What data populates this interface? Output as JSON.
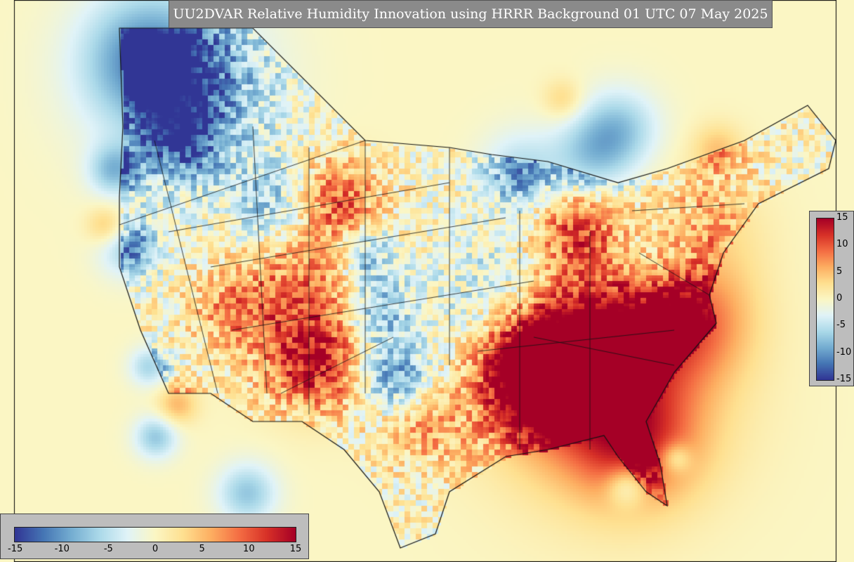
{
  "title": "UU2DVAR Relative Humidity Innovation using HRRR Background 01 UTC 07 May 2025",
  "colorscale": {
    "name": "RdYlBu_r",
    "min": -15,
    "max": 15,
    "stops": [
      "#313695",
      "#4575b4",
      "#74add1",
      "#abd9e9",
      "#e0f3f8",
      "#fbf6c4",
      "#fee090",
      "#fdae61",
      "#f46d43",
      "#d73027",
      "#a50026"
    ]
  },
  "colorbar_vertical": {
    "ticks": [
      "15",
      "10",
      "5",
      "0",
      "-5",
      "-10",
      "-15"
    ]
  },
  "colorbar_horizontal": {
    "ticks": [
      "-15",
      "-10",
      "-5",
      "0",
      "5",
      "10",
      "15"
    ]
  },
  "map": {
    "projection": "lambert-conformal",
    "region": "CONUS",
    "background_value": 0,
    "notable_features": [
      {
        "area": "Southeast US (GA, SC, NC, AL, FL)",
        "value": 12
      },
      {
        "area": "Virginia coast",
        "value": 14
      },
      {
        "area": "Pacific Northwest interior",
        "value": -12
      },
      {
        "area": "Colorado Rockies",
        "value": 10
      },
      {
        "area": "Oklahoma / Texas panhandle",
        "value": -11
      },
      {
        "area": "Upper Great Lakes",
        "value": -9
      }
    ]
  }
}
